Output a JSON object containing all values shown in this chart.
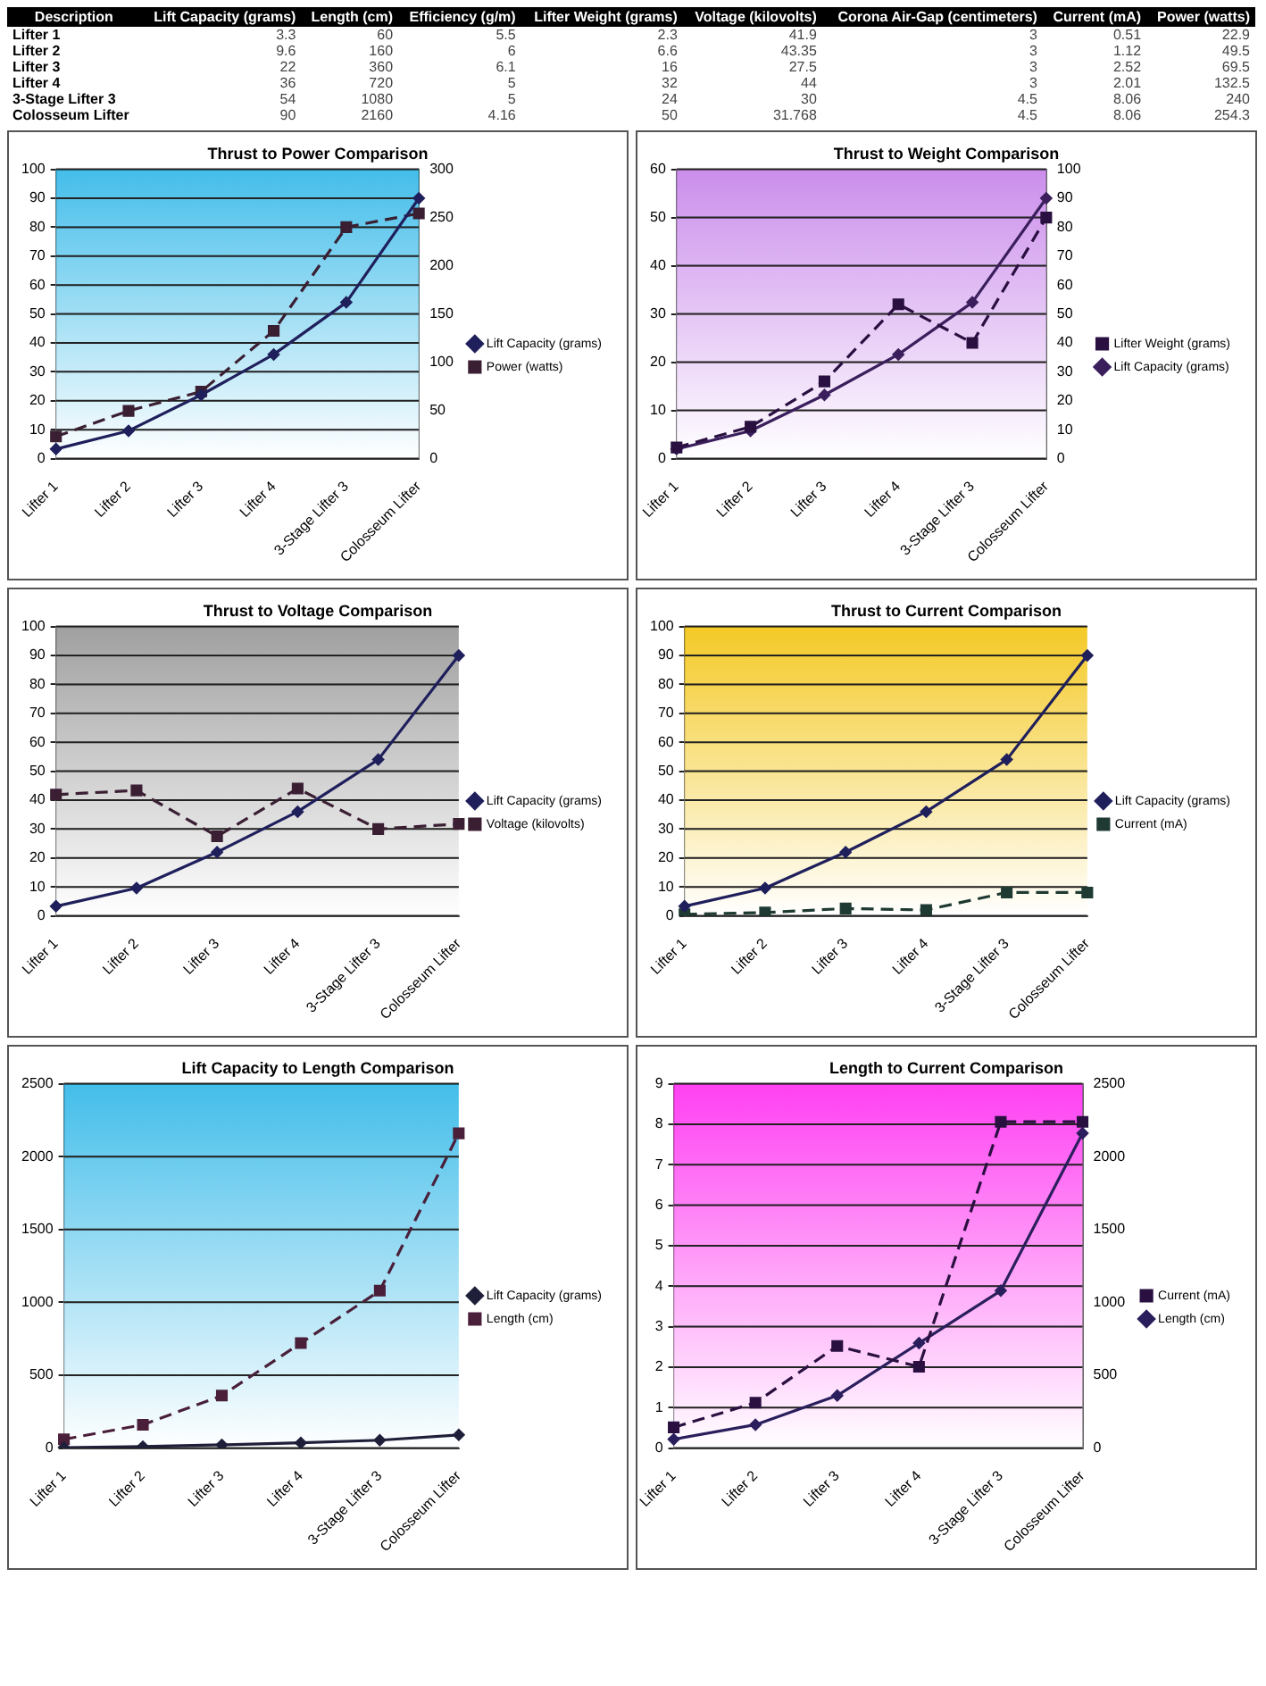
{
  "chart_data": [
    {
      "type": "other",
      "xlabel": "Description",
      "data_labels": true,
      "categories": [
        "Lifter 1",
        "Lifter 2",
        "Lifter 3",
        "Lifter 4",
        "3-Stage Lifter 3",
        "Colosseum Lifter"
      ],
      "series": [
        {
          "name": "Lift Capacity (grams)",
          "values": [
            3.3,
            9.6,
            22,
            36,
            54,
            90
          ]
        },
        {
          "name": "Length (cm)",
          "values": [
            60,
            160,
            360,
            720,
            1080,
            2160
          ]
        },
        {
          "name": "Efficiency (g/m)",
          "values": [
            5.5,
            6,
            6.1,
            5,
            5,
            4.16
          ]
        },
        {
          "name": "Lifter Weight (grams)",
          "values": [
            2.3,
            6.6,
            16,
            32,
            24,
            50
          ]
        },
        {
          "name": "Voltage (kilovolts)",
          "values": [
            41.9,
            43.35,
            27.5,
            44,
            30,
            31.768
          ]
        },
        {
          "name": "Corona Air-Gap (centimeters)",
          "values": [
            3,
            3,
            3,
            3,
            4.5,
            4.5
          ]
        },
        {
          "name": "Current (mA)",
          "values": [
            0.51,
            1.12,
            2.52,
            2.01,
            8.06,
            8.06
          ]
        },
        {
          "name": "Power (watts)",
          "values": [
            22.9,
            49.5,
            69.5,
            132.5,
            240,
            254.3
          ]
        }
      ]
    },
    {
      "type": "line",
      "title": "Thrust to Power Comparison",
      "categories": [
        "Lifter 1",
        "Lifter 2",
        "Lifter 3",
        "Lifter 4",
        "3-Stage Lifter 3",
        "Colosseum Lifter"
      ],
      "ylim": [
        0,
        100
      ],
      "yticks": [
        0,
        10,
        20,
        30,
        40,
        50,
        60,
        70,
        80,
        90,
        100
      ],
      "y2lim": [
        0,
        300
      ],
      "y2ticks": [
        0,
        50,
        100,
        150,
        200,
        250,
        300
      ],
      "grid": "y",
      "legend": "right",
      "series": [
        {
          "name": "Lift Capacity (grams)",
          "color": "#1f1f5c",
          "marker": "diamond",
          "line_style": "solid",
          "values": [
            3.3,
            9.6,
            22,
            36,
            54,
            90
          ]
        },
        {
          "name": "Power (watts)",
          "color": "#3a1f33",
          "marker": "square",
          "line_style": "dashed",
          "axis": "y2",
          "values": [
            22.9,
            49.5,
            69.5,
            132.5,
            240,
            254.3
          ]
        }
      ]
    },
    {
      "type": "line",
      "title": "Thrust to Weight Comparison",
      "categories": [
        "Lifter 1",
        "Lifter 2",
        "Lifter 3",
        "Lifter 4",
        "3-Stage Lifter 3",
        "Colosseum Lifter"
      ],
      "ylim": [
        0,
        60
      ],
      "yticks": [
        0,
        10,
        20,
        30,
        40,
        50,
        60
      ],
      "y2lim": [
        0,
        100
      ],
      "y2ticks": [
        0,
        10,
        20,
        30,
        40,
        50,
        60,
        70,
        80,
        90,
        100
      ],
      "grid": "y",
      "legend": "right",
      "series": [
        {
          "name": "Lifter Weight (grams)",
          "color": "#2a1040",
          "marker": "square",
          "line_style": "dashed",
          "values": [
            2.3,
            6.6,
            16,
            32,
            24,
            50
          ]
        },
        {
          "name": "Lift Capacity (grams)",
          "color": "#3a1f5c",
          "marker": "diamond",
          "line_style": "solid",
          "axis": "y2",
          "values": [
            3.3,
            9.6,
            22,
            36,
            54,
            90
          ]
        }
      ]
    },
    {
      "type": "line",
      "title": "Thrust to Voltage Comparison",
      "categories": [
        "Lifter 1",
        "Lifter 2",
        "Lifter 3",
        "Lifter 4",
        "3-Stage Lifter 3",
        "Colosseum Lifter"
      ],
      "ylim": [
        0,
        100
      ],
      "yticks": [
        0,
        10,
        20,
        30,
        40,
        50,
        60,
        70,
        80,
        90,
        100
      ],
      "grid": "y",
      "legend": "right",
      "series": [
        {
          "name": "Lift Capacity (grams)",
          "color": "#1f1f5c",
          "marker": "diamond",
          "line_style": "solid",
          "values": [
            3.3,
            9.6,
            22,
            36,
            54,
            90
          ]
        },
        {
          "name": "Voltage (kilovolts)",
          "color": "#3a1f33",
          "marker": "square",
          "line_style": "dashed",
          "values": [
            41.9,
            43.35,
            27.5,
            44,
            30,
            31.768
          ]
        }
      ]
    },
    {
      "type": "line",
      "title": "Thrust to Current Comparison",
      "categories": [
        "Lifter 1",
        "Lifter 2",
        "Lifter 3",
        "Lifter 4",
        "3-Stage Lifter 3",
        "Colosseum Lifter"
      ],
      "ylim": [
        0,
        100
      ],
      "yticks": [
        0,
        10,
        20,
        30,
        40,
        50,
        60,
        70,
        80,
        90,
        100
      ],
      "grid": "y",
      "legend": "right",
      "series": [
        {
          "name": "Lift Capacity (grams)",
          "color": "#1f1f5c",
          "marker": "diamond",
          "line_style": "solid",
          "values": [
            3.3,
            9.6,
            22,
            36,
            54,
            90
          ]
        },
        {
          "name": "Current (mA)",
          "color": "#1f3a33",
          "marker": "square",
          "line_style": "dashed",
          "values": [
            0.51,
            1.12,
            2.52,
            2.01,
            8.06,
            8.06
          ]
        }
      ]
    },
    {
      "type": "line",
      "title": "Lift Capacity to Length Comparison",
      "categories": [
        "Lifter 1",
        "Lifter 2",
        "Lifter 3",
        "Lifter 4",
        "3-Stage Lifter 3",
        "Colosseum Lifter"
      ],
      "ylim": [
        0,
        2500
      ],
      "yticks": [
        0,
        500,
        1000,
        1500,
        2000,
        2500
      ],
      "grid": "y",
      "legend": "right",
      "series": [
        {
          "name": "Lift Capacity (grams)",
          "color": "#1f1f3a",
          "marker": "diamond",
          "line_style": "solid",
          "values": [
            3.3,
            9.6,
            22,
            36,
            54,
            90
          ]
        },
        {
          "name": "Length (cm)",
          "color": "#4a1f3a",
          "marker": "square",
          "line_style": "dashed",
          "values": [
            60,
            160,
            360,
            720,
            1080,
            2160
          ]
        }
      ]
    },
    {
      "type": "line",
      "title": "Length to Current Comparison",
      "categories": [
        "Lifter 1",
        "Lifter 2",
        "Lifter 3",
        "Lifter 4",
        "3-Stage Lifter 3",
        "Colosseum Lifter"
      ],
      "ylim": [
        0,
        9
      ],
      "yticks": [
        0,
        1,
        2,
        3,
        4,
        5,
        6,
        7,
        8,
        9
      ],
      "y2lim": [
        0,
        2500
      ],
      "y2ticks": [
        0,
        500,
        1000,
        1500,
        2000,
        2500
      ],
      "grid": "y",
      "legend": "right",
      "series": [
        {
          "name": "Current (mA)",
          "color": "#2a1040",
          "marker": "square",
          "line_style": "dashed",
          "values": [
            0.51,
            1.12,
            2.52,
            2.01,
            8.06,
            8.06
          ]
        },
        {
          "name": "Length (cm)",
          "color": "#2a1f5c",
          "marker": "diamond",
          "line_style": "solid",
          "axis": "y2",
          "values": [
            60,
            160,
            360,
            720,
            1080,
            2160
          ]
        }
      ]
    }
  ]
}
